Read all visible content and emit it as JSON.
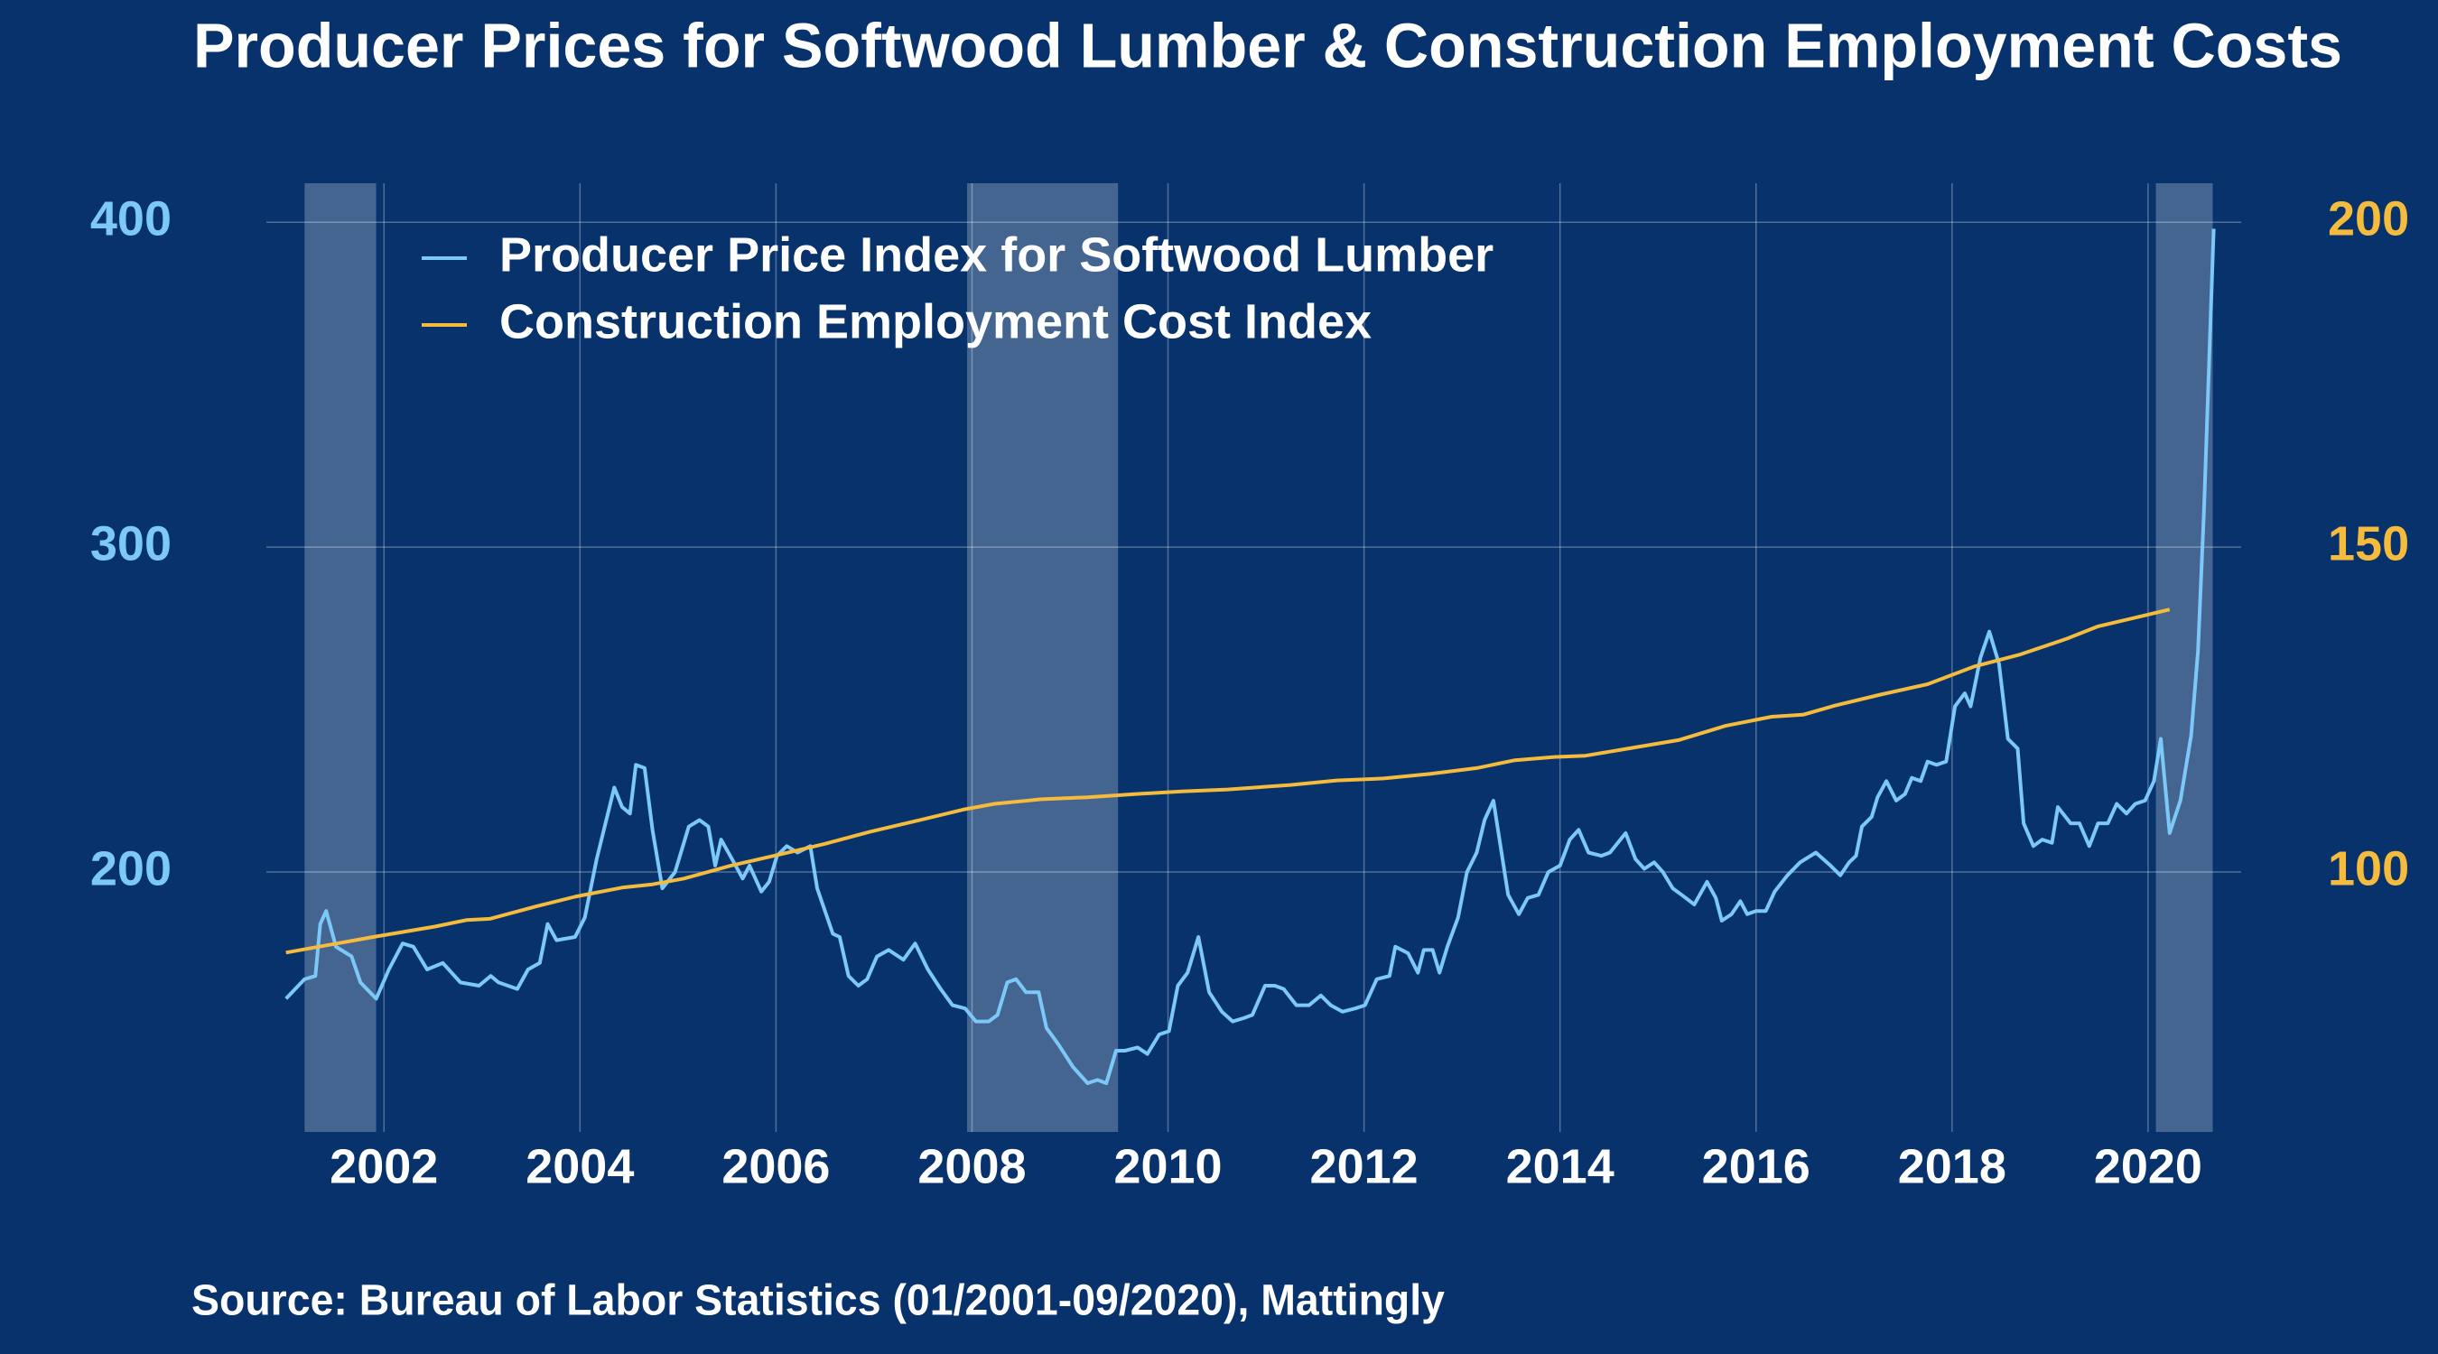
{
  "chart_data": {
    "type": "line",
    "title": "Producer Prices for Softwood Lumber & Construction Employment Costs",
    "source": "Source: Bureau of Labor Statistics (01/2001-09/2020), Mattingly",
    "xlim": [
      2000.8,
      2020.95
    ],
    "xticks": [
      2002,
      2004,
      2006,
      2008,
      2010,
      2012,
      2014,
      2016,
      2018,
      2020
    ],
    "ylim": [
      120,
      412
    ],
    "yticks": [
      200,
      300,
      400
    ],
    "y2lim": [
      60,
      206
    ],
    "y2ticks": [
      100,
      150,
      200
    ],
    "ytick_color": "#7cc8f8",
    "y2tick_color": "#f4bb3c",
    "grid": true,
    "legend": "top-left",
    "recessions": [
      [
        2001.19,
        2001.92
      ],
      [
        2007.95,
        2009.49
      ],
      [
        2020.08,
        2020.66
      ]
    ],
    "series": [
      {
        "name": "Producer Price Index for Softwood Lumber",
        "color": "#7cc8f8",
        "axis": "y",
        "x": [
          2001.0,
          2001.19,
          2001.3,
          2001.35,
          2001.41,
          2001.51,
          2001.67,
          2001.76,
          2001.92,
          2002.05,
          2002.19,
          2002.3,
          2002.44,
          2002.6,
          2002.78,
          2002.97,
          2003.09,
          2003.17,
          2003.36,
          2003.47,
          2003.59,
          2003.67,
          2003.76,
          2003.95,
          2004.05,
          2004.17,
          2004.35,
          2004.43,
          2004.51,
          2004.57,
          2004.66,
          2004.74,
          2004.84,
          2004.97,
          2005.11,
          2005.22,
          2005.31,
          2005.38,
          2005.44,
          2005.57,
          2005.66,
          2005.73,
          2005.85,
          2005.93,
          2006.01,
          2006.11,
          2006.22,
          2006.35,
          2006.42,
          2006.58,
          2006.65,
          2006.74,
          2006.84,
          2006.93,
          2007.03,
          2007.15,
          2007.3,
          2007.42,
          2007.55,
          2007.68,
          2007.8,
          2007.93,
          2008.04,
          2008.17,
          2008.26,
          2008.36,
          2008.45,
          2008.55,
          2008.68,
          2008.76,
          2008.88,
          2009.03,
          2009.18,
          2009.28,
          2009.37,
          2009.47,
          2009.56,
          2009.69,
          2009.79,
          2009.91,
          2010.01,
          2010.1,
          2010.2,
          2010.31,
          2010.42,
          2010.55,
          2010.66,
          2010.77,
          2010.86,
          2010.99,
          2011.09,
          2011.18,
          2011.31,
          2011.44,
          2011.56,
          2011.66,
          2011.78,
          2011.91,
          2012.01,
          2012.13,
          2012.26,
          2012.32,
          2012.45,
          2012.55,
          2012.61,
          2012.7,
          2012.77,
          2012.85,
          2012.96,
          2013.05,
          2013.15,
          2013.23,
          2013.32,
          2013.47,
          2013.58,
          2013.67,
          2013.78,
          2013.88,
          2014.0,
          2014.1,
          2014.19,
          2014.29,
          2014.42,
          2014.51,
          2014.67,
          2014.77,
          2014.86,
          2014.96,
          2015.05,
          2015.15,
          2015.24,
          2015.37,
          2015.5,
          2015.59,
          2015.65,
          2015.75,
          2015.84,
          2015.91,
          2016.0,
          2016.1,
          2016.19,
          2016.32,
          2016.45,
          2016.61,
          2016.76,
          2016.86,
          2016.95,
          2017.02,
          2017.08,
          2017.18,
          2017.24,
          2017.33,
          2017.43,
          2017.52,
          2017.59,
          2017.68,
          2017.75,
          2017.84,
          2017.94,
          2018.03,
          2018.13,
          2018.19,
          2018.29,
          2018.38,
          2018.48,
          2018.57,
          2018.67,
          2018.73,
          2018.83,
          2018.92,
          2019.02,
          2019.08,
          2019.21,
          2019.3,
          2019.4,
          2019.49,
          2019.59,
          2019.68,
          2019.78,
          2019.87,
          2019.97,
          2020.06,
          2020.13,
          2020.22,
          2020.33,
          2020.44,
          2020.51,
          2020.57,
          2020.67
        ],
        "values": [
          161,
          167,
          168,
          184,
          188,
          177,
          174,
          166,
          161,
          170,
          178,
          177,
          170,
          172,
          166,
          165,
          168,
          166,
          164,
          170,
          172,
          184,
          179,
          180,
          186,
          204,
          226,
          220,
          218,
          233,
          232,
          213,
          195,
          200,
          214,
          216,
          214,
          202,
          210,
          203,
          198,
          202,
          194,
          197,
          205,
          208,
          206,
          208,
          195,
          181,
          180,
          168,
          165,
          167,
          174,
          176,
          173,
          178,
          170,
          164,
          159,
          158,
          154,
          154,
          156,
          166,
          167,
          163,
          163,
          152,
          147,
          140,
          135,
          136,
          135,
          145,
          145,
          146,
          144,
          150,
          151,
          165,
          169,
          180,
          163,
          157,
          154,
          155,
          156,
          165,
          165,
          164,
          159,
          159,
          162,
          159,
          157,
          158,
          159,
          167,
          168,
          177,
          175,
          169,
          176,
          176,
          169,
          177,
          186,
          200,
          206,
          216,
          222,
          193,
          187,
          192,
          193,
          200,
          202,
          210,
          213,
          206,
          205,
          206,
          212,
          204,
          201,
          203,
          200,
          195,
          193,
          190,
          197,
          192,
          185,
          187,
          191,
          187,
          188,
          188,
          194,
          199,
          203,
          206,
          202,
          199,
          203,
          205,
          214,
          217,
          223,
          228,
          222,
          224,
          229,
          228,
          234,
          233,
          234,
          251,
          255,
          251,
          266,
          274,
          264,
          241,
          238,
          215,
          208,
          210,
          209,
          220,
          215,
          215,
          208,
          215,
          215,
          221,
          218,
          221,
          222,
          228,
          241,
          212,
          222,
          242,
          268,
          311,
          398
        ]
      },
      {
        "name": "Construction Employment Cost Index",
        "color": "#f4bb3c",
        "axis": "y2",
        "x": [
          2001.0,
          2001.89,
          2002.52,
          2002.84,
          2003.08,
          2003.55,
          2003.95,
          2004.43,
          2004.74,
          2005.06,
          2005.54,
          2006.01,
          2006.49,
          2006.96,
          2007.44,
          2007.91,
          2008.23,
          2008.71,
          2009.18,
          2009.66,
          2010.14,
          2010.61,
          2011.25,
          2011.72,
          2012.2,
          2012.67,
          2013.15,
          2013.54,
          2013.94,
          2014.26,
          2014.73,
          2015.21,
          2015.69,
          2016.16,
          2016.48,
          2016.8,
          2017.27,
          2017.75,
          2018.22,
          2018.7,
          2019.17,
          2019.49,
          2019.97,
          2020.22
        ],
        "values": [
          87.6,
          90.0,
          91.6,
          92.6,
          92.8,
          94.7,
          96.2,
          97.6,
          98.1,
          99.0,
          101.0,
          102.6,
          104.3,
          106.2,
          107.9,
          109.6,
          110.5,
          111.2,
          111.5,
          112.0,
          112.4,
          112.7,
          113.4,
          114.1,
          114.4,
          115.1,
          116.0,
          117.2,
          117.7,
          117.9,
          119.1,
          120.3,
          122.5,
          123.9,
          124.2,
          125.6,
          127.3,
          128.9,
          131.6,
          133.5,
          135.9,
          137.8,
          139.5,
          140.4
        ]
      }
    ]
  }
}
